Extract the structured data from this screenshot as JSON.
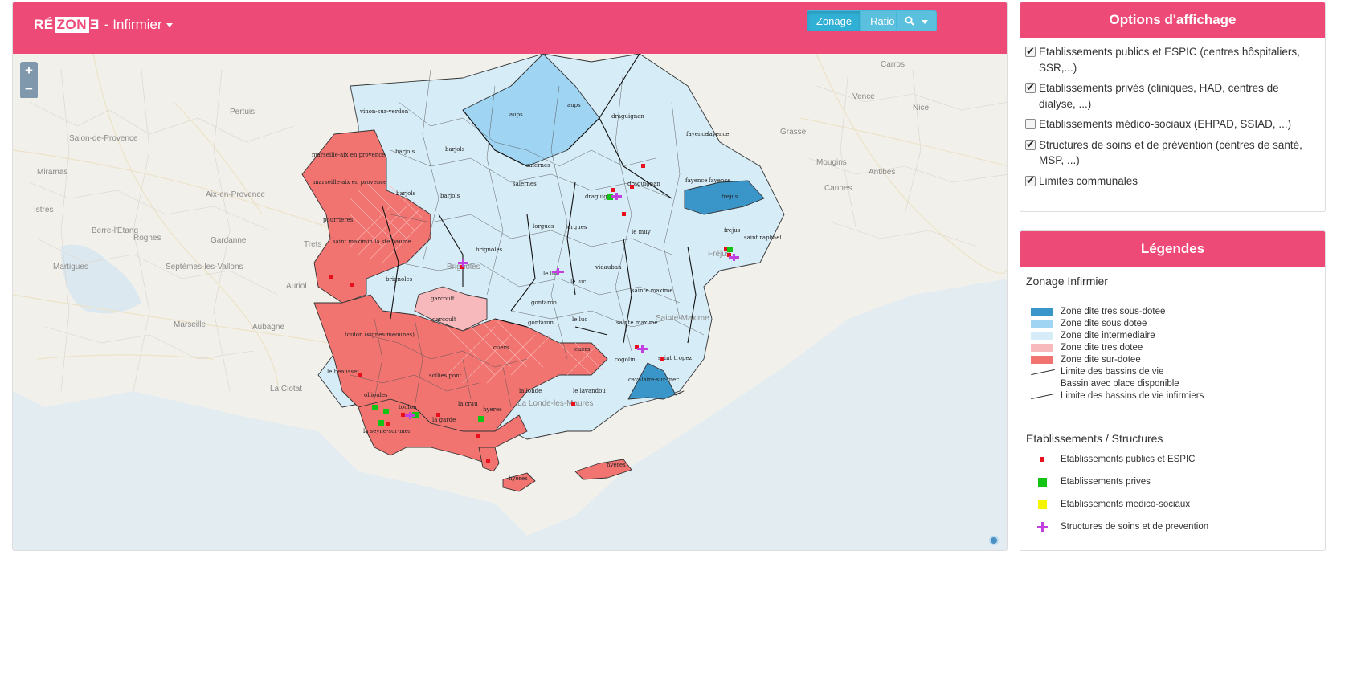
{
  "app": {
    "logo_left": "RÉ",
    "logo_mid": "ZON",
    "logo_right": "Ǝ",
    "module": "- Infirmier",
    "accent": "#ee4a78"
  },
  "toolbar": {
    "zonage_label": "Zonage",
    "ratio_label": "Ratio",
    "search_icon": "search-icon"
  },
  "map": {
    "zoom_in": "+",
    "zoom_out": "−",
    "zone_colors": {
      "tres_sous_dotee": "#3a96c9",
      "sous_dotee": "#9fd4f2",
      "intermediaire": "#d6ecf7",
      "tres_dotee": "#f7b9bb",
      "sur_dotee": "#f27470"
    },
    "labels": [
      "vinon-sur-verdon",
      "aups",
      "aups",
      "draguignan",
      "fayence",
      "fayence",
      "barjols",
      "barjols",
      "marseille-aix en provence",
      "marseille-aix en provence",
      "salernes",
      "salernes",
      "draguignan",
      "fayence",
      "fayence",
      "barjols",
      "barjols",
      "draguignan",
      "frejus",
      "pourrieres",
      "saint maximin la ste baume",
      "lorgues",
      "lorgues",
      "le muy",
      "saint raphael",
      "frejus",
      "brignoles",
      "brignoles",
      "le luc",
      "le luc",
      "vidauban",
      "sainte maxime",
      "garcoult",
      "gonfaron",
      "garcoult",
      "le luc",
      "gonfaron",
      "sainte maxime",
      "toulon (signes-meounes)",
      "cuers",
      "cuers",
      "cogolin",
      "saint tropez",
      "le beausset",
      "sollies pont",
      "cavalaire-sur-mer",
      "ollioules",
      "la londe",
      "le lavandou",
      "toulon",
      "la crau",
      "hyeres",
      "la garde",
      "la seyne-sur-mer",
      "hyeres",
      "hyeres"
    ],
    "places": [
      "Pertuis",
      "Salon-de-Provence",
      "Miramas",
      "Aix-en-Provence",
      "Istres",
      "Berre-l'Étang",
      "Rognes",
      "Gardanne",
      "Trets",
      "Martigues",
      "Septèmes-les-Vallons",
      "Marseille",
      "Aubagne",
      "La Ciotat",
      "Auriol",
      "Grasse",
      "Vence",
      "Nice",
      "Antibes",
      "Cannes",
      "Carros",
      "Mougins",
      "Fréjus",
      "Sainte-Maxime",
      "La Londe-les-Maures",
      "Brignoles"
    ]
  },
  "options": {
    "title": "Options d'affichage",
    "items": [
      {
        "label": "Etablissements publics et ESPIC (centres hôspitaliers, SSR,...)",
        "checked": true
      },
      {
        "label": "Etablissements privés (cliniques, HAD, centres de dialyse, ...)",
        "checked": true
      },
      {
        "label": "Etablissements médico-sociaux (EHPAD, SSIAD, ...)",
        "checked": false
      },
      {
        "label": "Structures de soins et de prévention (centres de santé, MSP, ...)",
        "checked": true
      },
      {
        "label": "Limites communales",
        "checked": true
      }
    ]
  },
  "legend": {
    "title": "Légendes",
    "zonage_title": "Zonage Infirmier",
    "zones": [
      {
        "label": "Zone dite tres sous-dotee",
        "color": "#3a96c9"
      },
      {
        "label": "Zone dite sous dotee",
        "color": "#9fd4f2"
      },
      {
        "label": "Zone dite intermediaire",
        "color": "#d6ecf7"
      },
      {
        "label": "Zone dite tres dotee",
        "color": "#f7b9bb"
      },
      {
        "label": "Zone dite sur-dotee",
        "color": "#f27470"
      }
    ],
    "limite_bassins": "Limite des bassins de vie",
    "bassin_place": "Bassin avec place disponible",
    "limite_bassins_inf": "Limite des bassins de vie infirmiers",
    "etab_title": "Etablissements / Structures",
    "etabs": [
      {
        "label": "Etablissements publics et ESPIC",
        "color": "#e8101c",
        "shape": "square-small"
      },
      {
        "label": "Etablissements prives",
        "color": "#14c414",
        "shape": "square"
      },
      {
        "label": "Etablissements medico-sociaux",
        "color": "#f5f500",
        "shape": "square"
      },
      {
        "label": "Structures de soins et de prevention",
        "color": "#c040e0",
        "shape": "cross"
      }
    ]
  }
}
